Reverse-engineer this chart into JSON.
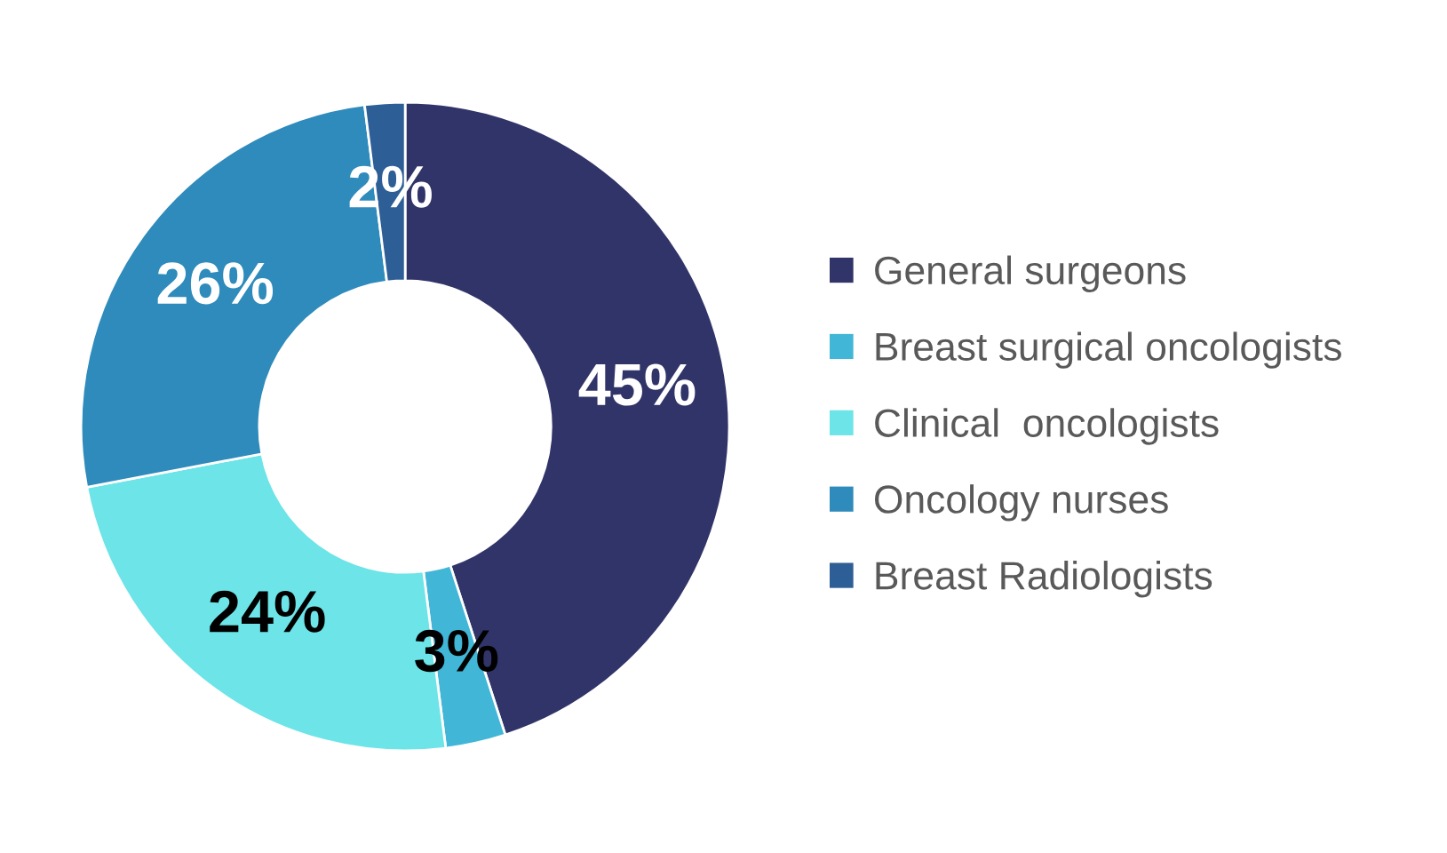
{
  "chart_data": {
    "type": "donut",
    "categories": [
      "General surgeons",
      "Breast surgical oncologists",
      "Clinical  oncologists",
      "Oncology nurses",
      "Breast Radiologists"
    ],
    "values": [
      45,
      3,
      24,
      26,
      2
    ],
    "colors": [
      "#313468",
      "#41b6d6",
      "#6ce4e8",
      "#2e8bbb",
      "#2e5e96"
    ],
    "value_labels": [
      "45%",
      "3%",
      "24%",
      "26%",
      "2%"
    ],
    "legend": "right"
  }
}
